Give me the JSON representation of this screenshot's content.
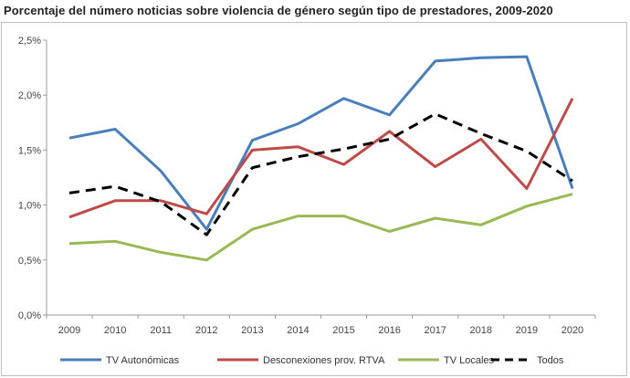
{
  "chart_data": {
    "type": "line",
    "title": "Porcentaje del número noticias sobre violencia de género según tipo de prestadores, 2009-2020",
    "xlabel": "",
    "ylabel": "",
    "categories": [
      "2009",
      "2010",
      "2011",
      "2012",
      "2013",
      "2014",
      "2015",
      "2016",
      "2017",
      "2018",
      "2019",
      "2020"
    ],
    "ylim": [
      0,
      2.5
    ],
    "yticks": [
      "0,0%",
      "0,5%",
      "1,0%",
      "1,5%",
      "2,0%",
      "2,5%"
    ],
    "ytick_values": [
      0,
      0.5,
      1.0,
      1.5,
      2.0,
      2.5
    ],
    "grid": false,
    "legend_position": "bottom",
    "series": [
      {
        "name": "TV Autonómicas",
        "color": "#4a7ebb",
        "dash": false,
        "values": [
          1.61,
          1.69,
          1.31,
          0.78,
          1.59,
          1.74,
          1.97,
          1.82,
          2.31,
          2.34,
          2.35,
          1.15
        ]
      },
      {
        "name": "Desconexiones prov. RTVA",
        "color": "#be4b48",
        "dash": false,
        "values": [
          0.89,
          1.04,
          1.04,
          0.92,
          1.5,
          1.53,
          1.37,
          1.67,
          1.35,
          1.6,
          1.15,
          1.97
        ]
      },
      {
        "name": "TV Locales",
        "color": "#98b954",
        "dash": false,
        "values": [
          0.65,
          0.67,
          0.57,
          0.5,
          0.78,
          0.9,
          0.9,
          0.76,
          0.88,
          0.82,
          0.99,
          1.1
        ]
      },
      {
        "name": "Todos",
        "color": "#000000",
        "dash": true,
        "values": [
          1.11,
          1.17,
          1.03,
          0.73,
          1.34,
          1.44,
          1.51,
          1.6,
          1.83,
          1.65,
          1.49,
          1.22
        ]
      }
    ]
  }
}
